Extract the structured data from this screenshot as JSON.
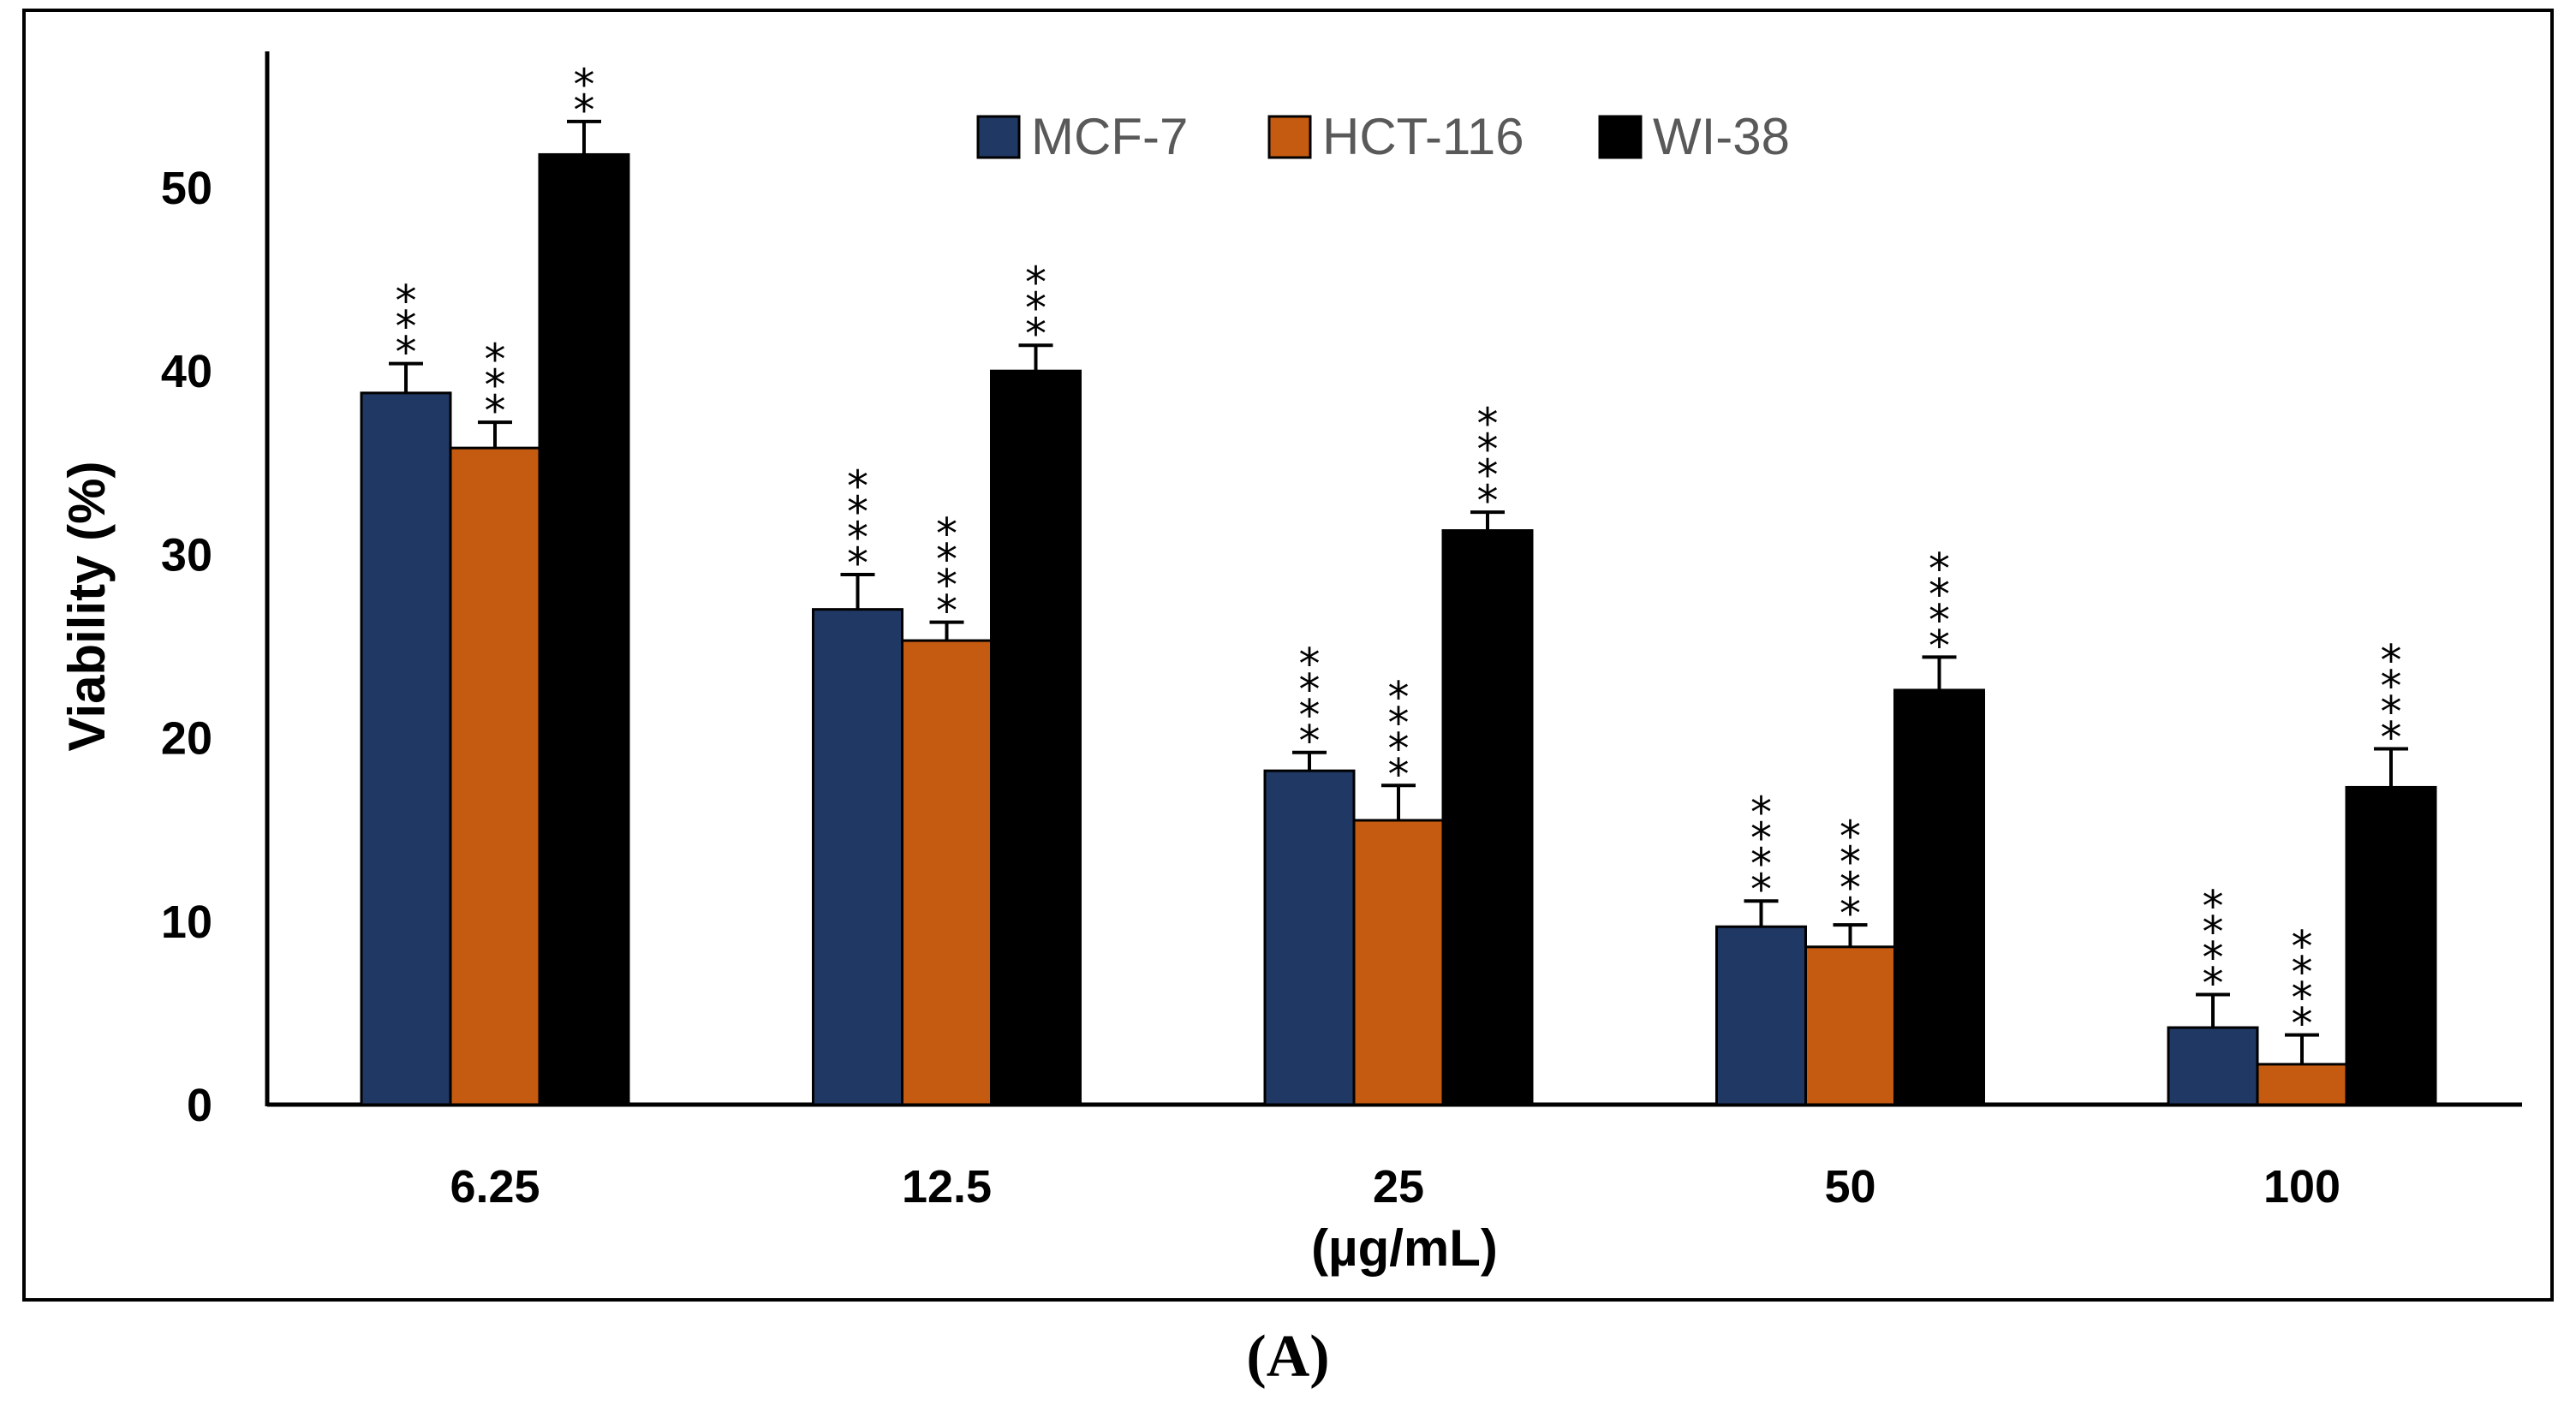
{
  "chart_data": {
    "type": "bar",
    "categories": [
      "6.25",
      "12.5",
      "25",
      "50",
      "100"
    ],
    "xlabel": "(µg/mL)",
    "ylabel": "Viability (%)",
    "ylim": [
      0,
      55
    ],
    "yticks": [
      0,
      10,
      20,
      30,
      40,
      50
    ],
    "grid": false,
    "legend_position": "top-center",
    "series": [
      {
        "name": "MCF-7",
        "color": "#203864",
        "values": [
          38.8,
          27.0,
          18.2,
          9.7,
          4.2
        ],
        "errors": [
          1.6,
          1.9,
          1.0,
          1.4,
          1.8
        ],
        "significance": [
          "***",
          "****",
          "****",
          "****",
          "****"
        ]
      },
      {
        "name": "HCT-116",
        "color": "#C55A11",
        "values": [
          35.8,
          25.3,
          15.5,
          8.6,
          2.2
        ],
        "errors": [
          1.4,
          1.0,
          1.9,
          1.2,
          1.6
        ],
        "significance": [
          "***",
          "****",
          "****",
          "****",
          "****"
        ]
      },
      {
        "name": "WI-38",
        "color": "#000000",
        "values": [
          51.8,
          40.0,
          31.3,
          22.6,
          17.3
        ],
        "errors": [
          1.8,
          1.4,
          1.0,
          1.8,
          2.1
        ],
        "significance": [
          "**",
          "***",
          "****",
          "****",
          "****"
        ]
      }
    ]
  },
  "panel_label": "(A)"
}
